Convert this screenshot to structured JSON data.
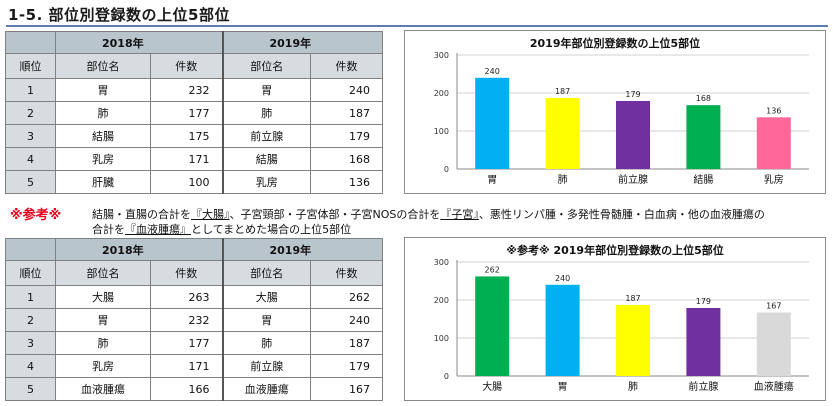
{
  "page_title": "1-5.  部位別登録数の上位5部位",
  "table1": {
    "year_a": "2018年",
    "year_b": "2019年",
    "col_rank": "順位",
    "col_site": "部位名",
    "col_count": "件数",
    "rows": [
      {
        "rank": "1",
        "site_a": "胃",
        "count_a": "232",
        "site_b": "胃",
        "count_b": "240"
      },
      {
        "rank": "2",
        "site_a": "肺",
        "count_a": "177",
        "site_b": "肺",
        "count_b": "187"
      },
      {
        "rank": "3",
        "site_a": "結腸",
        "count_a": "175",
        "site_b": "前立腺",
        "count_b": "179"
      },
      {
        "rank": "4",
        "site_a": "乳房",
        "count_a": "171",
        "site_b": "結腸",
        "count_b": "168"
      },
      {
        "rank": "5",
        "site_a": "肝臓",
        "count_a": "100",
        "site_b": "乳房",
        "count_b": "136"
      }
    ]
  },
  "note": {
    "mark": "※参考※",
    "line1_pre": "結腸・直腸の合計を",
    "line1_u1": "『大腸』",
    "line1_mid": "、子宮頸部・子宮体部・子宮NOSの合計を",
    "line1_u2": "『子宮』",
    "line1_post": "、悪性リンパ腫・多発性骨髄腫・白血病・他の血液腫瘍の",
    "line2_pre": "合計を",
    "line2_u": "『血液腫瘍』",
    "line2_post": "としてまとめた場合の上位5部位"
  },
  "table2": {
    "year_a": "2018年",
    "year_b": "2019年",
    "col_rank": "順位",
    "col_site": "部位名",
    "col_count": "件数",
    "rows": [
      {
        "rank": "1",
        "site_a": "大腸",
        "count_a": "263",
        "site_b": "大腸",
        "count_b": "262"
      },
      {
        "rank": "2",
        "site_a": "胃",
        "count_a": "232",
        "site_b": "胃",
        "count_b": "240"
      },
      {
        "rank": "3",
        "site_a": "肺",
        "count_a": "177",
        "site_b": "肺",
        "count_b": "187"
      },
      {
        "rank": "4",
        "site_a": "乳房",
        "count_a": "171",
        "site_b": "前立腺",
        "count_b": "179"
      },
      {
        "rank": "5",
        "site_a": "血液腫瘍",
        "count_a": "166",
        "site_b": "血液腫瘍",
        "count_b": "167"
      }
    ]
  },
  "chart_data": [
    {
      "type": "bar",
      "title": "2019年部位別登録数の上位5部位",
      "categories": [
        "胃",
        "肺",
        "前立腺",
        "結腸",
        "乳房"
      ],
      "values": [
        240,
        187,
        179,
        168,
        136
      ],
      "colors": [
        "#00b0f0",
        "#ffff00",
        "#7030a0",
        "#00b050",
        "#ff6699"
      ],
      "ylim": [
        0,
        300
      ],
      "yticks": [
        "0",
        "100",
        "200",
        "300"
      ],
      "grid": true
    },
    {
      "type": "bar",
      "title": "※参考※  2019年部位別登録数の上位5部位",
      "categories": [
        "大腸",
        "胃",
        "肺",
        "前立腺",
        "血液腫瘍"
      ],
      "values": [
        262,
        240,
        187,
        179,
        167
      ],
      "colors": [
        "#00b050",
        "#00b0f0",
        "#ffff00",
        "#7030a0",
        "#d9d9d9"
      ],
      "ylim": [
        0,
        300
      ],
      "yticks": [
        "0",
        "100",
        "200",
        "300"
      ],
      "grid": true
    }
  ]
}
